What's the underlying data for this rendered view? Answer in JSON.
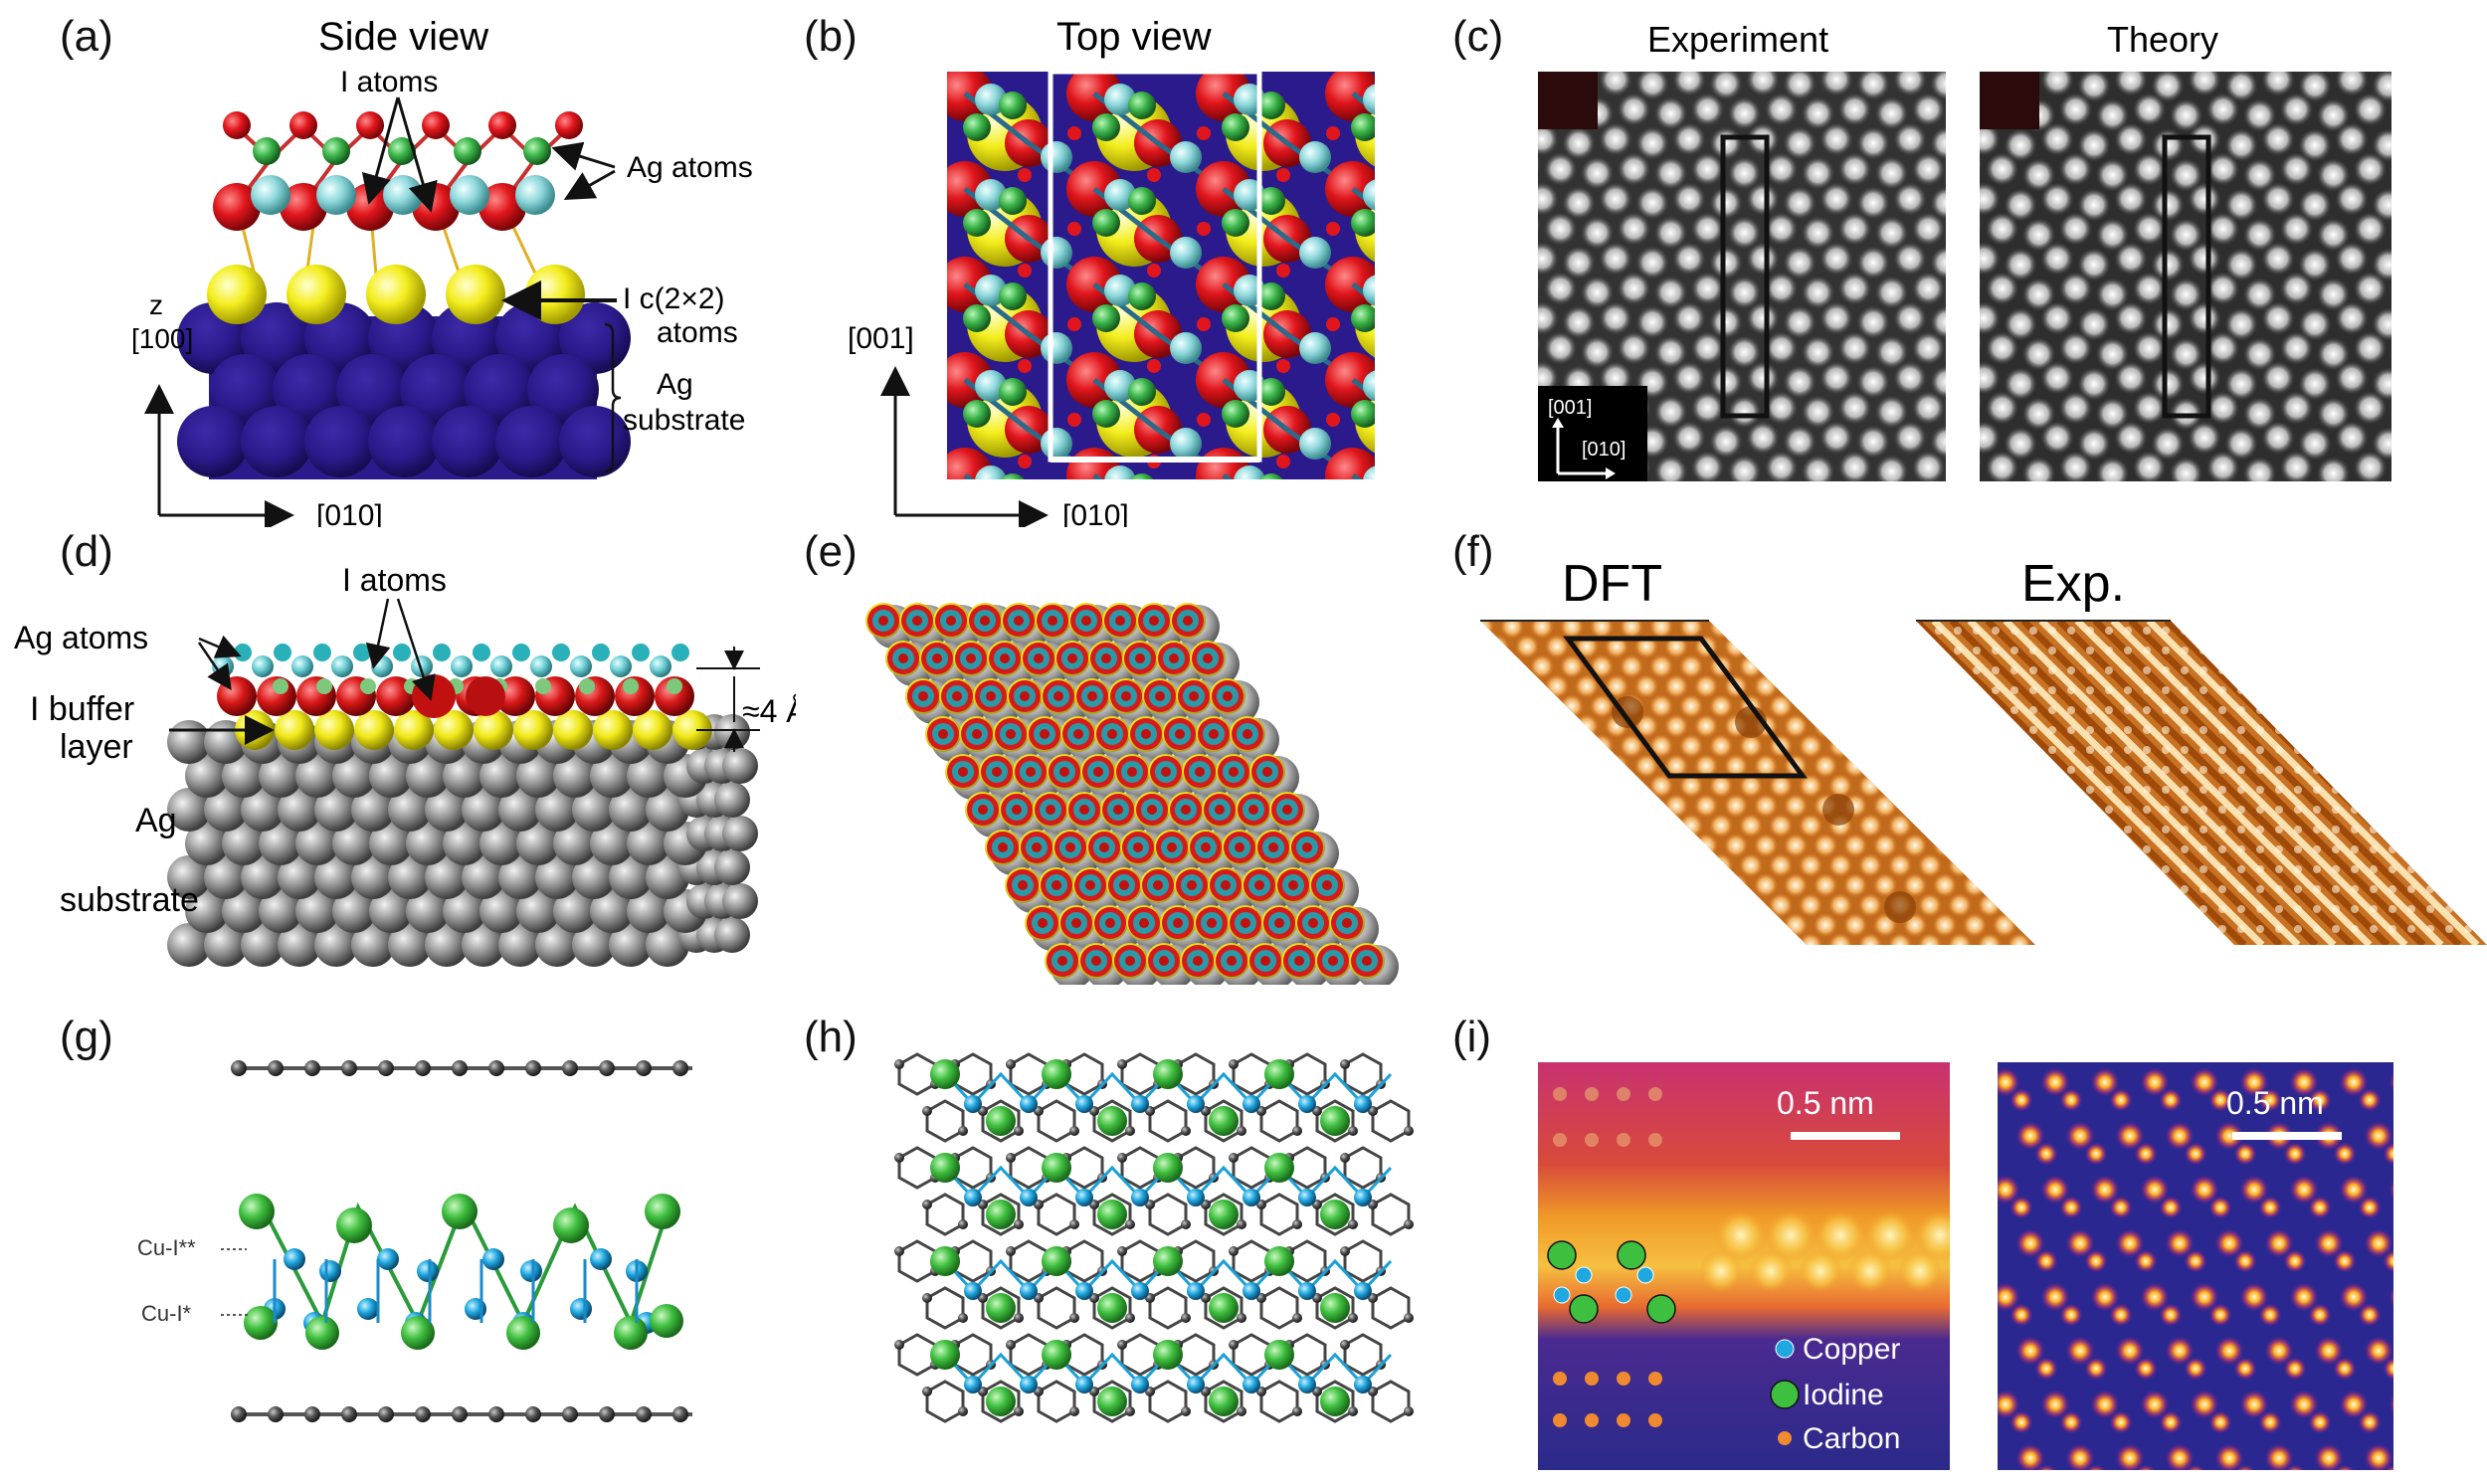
{
  "panels": {
    "a": {
      "letter": "(a)",
      "title": "Side view",
      "label_i_atoms": "I atoms",
      "label_ag_atoms": "Ag atoms",
      "label_ic_line1": "I c(2×2)",
      "label_ic_line2": "atoms",
      "label_z": "z",
      "label_100": "[100]",
      "label_ag_line1": "Ag",
      "label_ag_line2": "substrate",
      "label_010": "[010]"
    },
    "b": {
      "letter": "(b)",
      "title": "Top view",
      "label_001": "[001]",
      "label_010": "[010]"
    },
    "c": {
      "letter": "(c)",
      "title_exp": "Experiment",
      "title_theory": "Theory",
      "inset_001": "[001]",
      "inset_010": "[010]"
    },
    "d": {
      "letter": "(d)",
      "label_i_atoms": "I atoms",
      "label_ag_atoms": "Ag atoms",
      "label_buffer_line1": "I buffer",
      "label_buffer_line2": "layer",
      "label_sub_line1": "Ag",
      "label_sub_line2": "substrate",
      "label_dist": "≈4 Å"
    },
    "e": {
      "letter": "(e)"
    },
    "f": {
      "letter": "(f)",
      "title_dft": "DFT",
      "title_exp": "Exp."
    },
    "g": {
      "letter": "(g)",
      "label_cu1": "Cu-I**",
      "label_cu2": "Cu-I*"
    },
    "h": {
      "letter": "(h)"
    },
    "i": {
      "letter": "(i)",
      "scale1": "0.5 nm",
      "scale2": "0.5 nm",
      "legend_copper": "Copper",
      "legend_iodine": "Iodine",
      "legend_carbon": "Carbon"
    }
  },
  "colors": {
    "iodine_red": "#e0161c",
    "silver_cyan": "#8fd8dc",
    "ag_green": "#3cb54a",
    "i_yellow": "#f4ee1e",
    "substrate_purple": "#2b1a8c",
    "grey": "#9a9a9a",
    "cu_blue": "#1fa7df",
    "i_green": "#3fbf3f",
    "carbon_dark": "#444444"
  }
}
